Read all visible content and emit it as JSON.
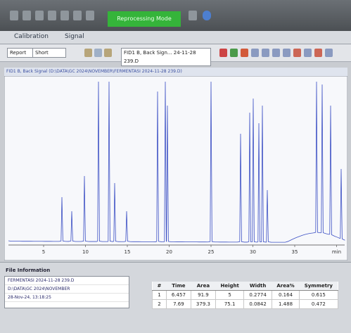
{
  "toolbar": {
    "mode": "Reprocessing Mode"
  },
  "tabs": [
    "Calibration",
    "Signal"
  ],
  "report_bar": {
    "label": "Report",
    "value": "Short",
    "signal": "FID1 B, Back Sign... 24-11-28 239.D"
  },
  "chromatogram": {
    "title": "FID1 B, Back Signal (D:\\DATA\\GC 2024\\NOVEMBER\\FERMENTASI 2024-11-28 239.D)",
    "x_ticks": [
      5,
      10,
      15,
      20,
      25,
      30,
      35,
      "min"
    ]
  },
  "file_info": {
    "title": "File Information",
    "lines": [
      "FERMENTASI 2024-11-28 239.D",
      "D:\\DATA\\GC 2024\\NOVEMBER",
      "28-Nov-24, 13:18:25"
    ]
  },
  "peak_table": {
    "headers": [
      "#",
      "Time",
      "Area",
      "Height",
      "Width",
      "Area%",
      "Symmetry"
    ],
    "rows": [
      [
        1,
        6.457,
        91.9,
        5,
        0.2774,
        0.164,
        0.615
      ],
      [
        2,
        7.69,
        379.3,
        75.1,
        0.0842,
        1.488,
        0.472
      ]
    ]
  }
}
